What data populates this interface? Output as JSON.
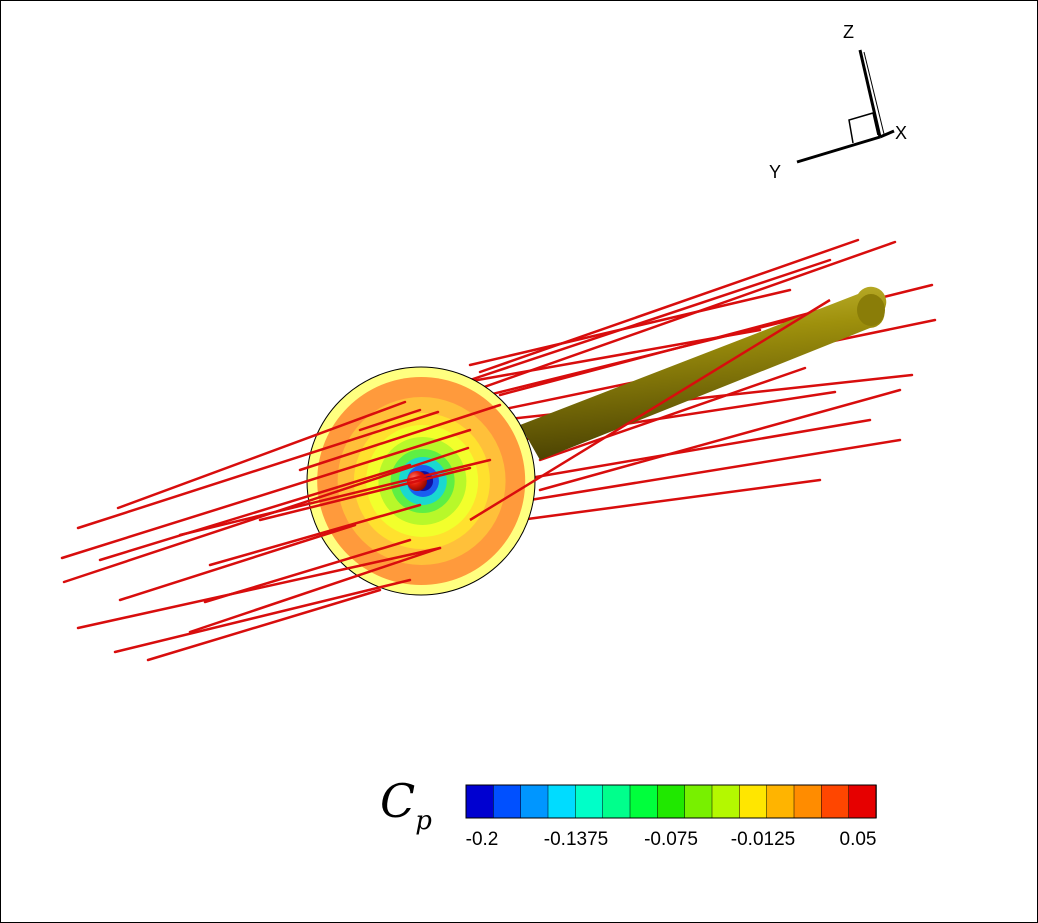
{
  "axes_triad": {
    "x_label": "X",
    "y_label": "Y",
    "z_label": "Z"
  },
  "colorbar": {
    "variable_symbol": "C",
    "variable_subscript": "p",
    "colors": [
      "#0000d0",
      "#0050ff",
      "#0096ff",
      "#00dcff",
      "#00ffc8",
      "#00ff8c",
      "#00ff3c",
      "#20e800",
      "#78f000",
      "#b4f800",
      "#ffe600",
      "#ffb400",
      "#ff8c00",
      "#ff4600",
      "#e60000"
    ],
    "tick_labels": [
      "-0.2",
      "-0.1375",
      "-0.075",
      "-0.0125",
      "0.05"
    ]
  },
  "disk": {
    "ring_colors": [
      "#ffff80",
      "#ff9a3c",
      "#ffc03a",
      "#ffe12e",
      "#f2ff2c",
      "#b8f82a",
      "#5eef44",
      "#1ad8d0",
      "#1a5ef0",
      "#1010a0"
    ],
    "hub_color": "#e11a0a"
  },
  "shaft": {
    "color": "#8a7d08"
  },
  "streamline_color": "#d80d0d"
}
